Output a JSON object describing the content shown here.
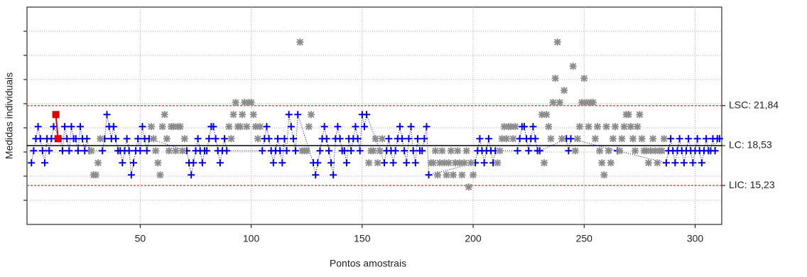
{
  "chart_data": {
    "type": "control",
    "xlabel": "Pontos amostrais",
    "ylabel": "Medidas individuais",
    "xlim": [
      -1,
      312
    ],
    "ylim": [
      12,
      30
    ],
    "xticks": [
      50,
      100,
      150,
      200,
      250,
      300
    ],
    "yticks": [
      14,
      16,
      18,
      20,
      22,
      24,
      26,
      28
    ],
    "grid": true,
    "limits": [
      {
        "value": 21.84,
        "label": "LSC: 21,84",
        "color": "#e03030",
        "style": "dashed"
      },
      {
        "value": 18.53,
        "label": "LC: 18,53",
        "color": "#000000",
        "style": "solid"
      },
      {
        "value": 15.23,
        "label": "LIC: 15,23",
        "color": "#e03030",
        "style": "dashed"
      }
    ],
    "series": [
      {
        "color": "#0000e0",
        "marker": "plus",
        "line": "dotted",
        "x": [
          1,
          2,
          3,
          4,
          5,
          6,
          7,
          8,
          9,
          10,
          11,
          14,
          15,
          16,
          17,
          18,
          19,
          20,
          21,
          22,
          23,
          24,
          25,
          26,
          27,
          33,
          34,
          35,
          36,
          37,
          38,
          39,
          40,
          41,
          42,
          43,
          44,
          45,
          46,
          47,
          48,
          49,
          50,
          51,
          52,
          53,
          54,
          71,
          72,
          73,
          74,
          75,
          76,
          77,
          78,
          79,
          80,
          81,
          82,
          83,
          84,
          85,
          86,
          87,
          88,
          89,
          105,
          106,
          107,
          108,
          109,
          110,
          111,
          112,
          113,
          114,
          115,
          116,
          117,
          118,
          119,
          120,
          121,
          128,
          129,
          130,
          131,
          132,
          133,
          134,
          135,
          136,
          137,
          138,
          139,
          140,
          141,
          142,
          143,
          144,
          145,
          146,
          147,
          148,
          149,
          150,
          151,
          152,
          160,
          161,
          162,
          163,
          164,
          165,
          166,
          167,
          168,
          169,
          170,
          171,
          172,
          173,
          174,
          175,
          176,
          177,
          178,
          179,
          180,
          201,
          202,
          203,
          204,
          205,
          206,
          207,
          208,
          209,
          210,
          220,
          221,
          222,
          223,
          224,
          225,
          226,
          227,
          228,
          229,
          230,
          242,
          243,
          244,
          265,
          287,
          288,
          289,
          290,
          291,
          292,
          293,
          294,
          295,
          296,
          297,
          298,
          299,
          300,
          301,
          302,
          303,
          304,
          305,
          306,
          307,
          308,
          309,
          310,
          311
        ],
        "values": [
          17.1,
          18.1,
          19.1,
          20.1,
          19.1,
          18.1,
          17.1,
          19.1,
          18.1,
          19.1,
          20.1,
          19.1,
          18.1,
          20.1,
          19.1,
          18.1,
          20.1,
          19.1,
          19.1,
          18.1,
          20.1,
          19.1,
          18.1,
          19.1,
          18.1,
          18.1,
          19.1,
          21.1,
          20.1,
          19.1,
          20.1,
          19.1,
          18.1,
          18.1,
          17.1,
          18.1,
          19.1,
          18.1,
          16.1,
          17.1,
          18.1,
          19.1,
          18.1,
          20.1,
          19.1,
          18.1,
          19.1,
          18.1,
          17.1,
          16.1,
          17.1,
          18.1,
          19.1,
          18.1,
          17.1,
          18.1,
          18.1,
          19.1,
          20.1,
          20.1,
          19.1,
          18.1,
          17.1,
          18.1,
          19.1,
          18.1,
          18.1,
          19.1,
          20.1,
          19.1,
          18.1,
          17.1,
          18.1,
          19.1,
          18.1,
          17.1,
          19.1,
          18.1,
          21.1,
          20.1,
          19.1,
          18.1,
          21.1,
          17.1,
          16.1,
          17.1,
          18.1,
          19.1,
          20.1,
          19.1,
          18.1,
          17.1,
          16.1,
          19.1,
          20.1,
          19.1,
          18.1,
          18.1,
          17.1,
          19.1,
          18.1,
          19.1,
          20.1,
          19.1,
          18.1,
          21.1,
          20.1,
          21.1,
          17.1,
          18.1,
          19.1,
          18.1,
          17.1,
          18.1,
          19.1,
          20.1,
          19.1,
          18.1,
          17.1,
          19.1,
          20.1,
          18.1,
          17.1,
          19.1,
          18.1,
          18.1,
          19.1,
          20.1,
          16.1,
          17.1,
          18.1,
          19.1,
          18.1,
          17.1,
          18.1,
          19.1,
          18.1,
          17.1,
          18.1,
          18.1,
          19.1,
          20.1,
          20.1,
          19.1,
          18.1,
          19.1,
          20.1,
          19.1,
          18.1,
          18.1,
          19.1,
          18.1,
          19.1,
          18.1,
          17.1,
          18.1,
          19.1,
          18.1,
          17.1,
          18.1,
          19.1,
          18.1,
          17.1,
          18.1,
          19.1,
          18.1,
          17.1,
          18.1,
          19.1,
          18.1,
          17.1,
          18.1,
          19.1,
          18.1,
          18.1,
          19.1,
          18.1,
          19.1,
          19.1
        ]
      },
      {
        "color": "#8c8c8c",
        "marker": "star",
        "line": "none",
        "x": [
          28,
          29,
          30,
          31,
          32,
          55,
          56,
          57,
          58,
          59,
          60,
          61,
          62,
          63,
          64,
          65,
          66,
          67,
          68,
          69,
          70,
          90,
          91,
          92,
          93,
          94,
          95,
          96,
          97,
          98,
          99,
          100,
          101,
          102,
          103,
          104,
          122,
          123,
          124,
          125,
          126,
          127,
          153,
          154,
          155,
          156,
          157,
          158,
          159,
          181,
          182,
          183,
          184,
          185,
          186,
          187,
          188,
          189,
          190,
          191,
          192,
          193,
          194,
          195,
          196,
          197,
          198,
          199,
          200,
          211,
          212,
          213,
          214,
          215,
          216,
          217,
          218,
          219,
          231,
          232,
          233,
          234,
          235,
          236,
          237,
          238,
          239,
          240,
          241,
          245,
          246,
          247,
          248,
          249,
          250,
          251,
          252,
          253,
          254,
          255,
          256,
          257,
          258,
          259,
          260,
          261,
          262,
          263,
          264,
          266,
          267,
          268,
          269,
          270,
          271,
          272,
          273,
          274,
          275,
          276,
          277,
          278,
          279,
          280,
          281,
          282,
          283,
          284,
          285,
          286
        ],
        "values": [
          18.1,
          16.1,
          16.1,
          17.1,
          19.1,
          20.1,
          19.1,
          18.1,
          17.1,
          16.1,
          20.1,
          21.1,
          19.1,
          18.1,
          20.1,
          20.1,
          18.1,
          20.1,
          20.1,
          18.1,
          19.1,
          20.1,
          19.1,
          21.1,
          22.1,
          20.1,
          20.1,
          21.1,
          22.1,
          20.1,
          22.1,
          22.1,
          21.1,
          20.1,
          19.1,
          20.1,
          27.1,
          18.1,
          18.1,
          18.1,
          20.1,
          21.1,
          17.1,
          18.1,
          18.1,
          19.1,
          17.1,
          18.1,
          19.1,
          17.1,
          17.1,
          18.1,
          16.1,
          17.1,
          18.1,
          17.1,
          16.1,
          17.1,
          18.1,
          16.1,
          17.1,
          18.1,
          17.1,
          16.1,
          17.1,
          18.1,
          15.1,
          17.1,
          16.1,
          17.1,
          18.1,
          19.1,
          20.1,
          19.1,
          20.1,
          20.1,
          19.1,
          20.1,
          21.1,
          17.1,
          21.1,
          20.1,
          19.1,
          22.1,
          24.1,
          27.1,
          22.1,
          19.1,
          23.1,
          25.1,
          18.1,
          19.1,
          20.1,
          22.1,
          24.1,
          22.1,
          20.1,
          22.1,
          22.1,
          19.1,
          20.1,
          18.1,
          17.1,
          16.1,
          20.1,
          18.1,
          17.1,
          19.1,
          20.1,
          18.1,
          19.1,
          20.1,
          21.1,
          21.1,
          20.1,
          19.1,
          18.1,
          20.1,
          21.1,
          19.1,
          18.1,
          18.1,
          17.1,
          18.1,
          19.1,
          18.1,
          17.1,
          18.1,
          18.1,
          19.1
        ]
      },
      {
        "color": "#e00000",
        "marker": "square",
        "line": "solid",
        "x": [
          12,
          13
        ],
        "values": [
          21.1,
          19.1
        ]
      }
    ]
  }
}
